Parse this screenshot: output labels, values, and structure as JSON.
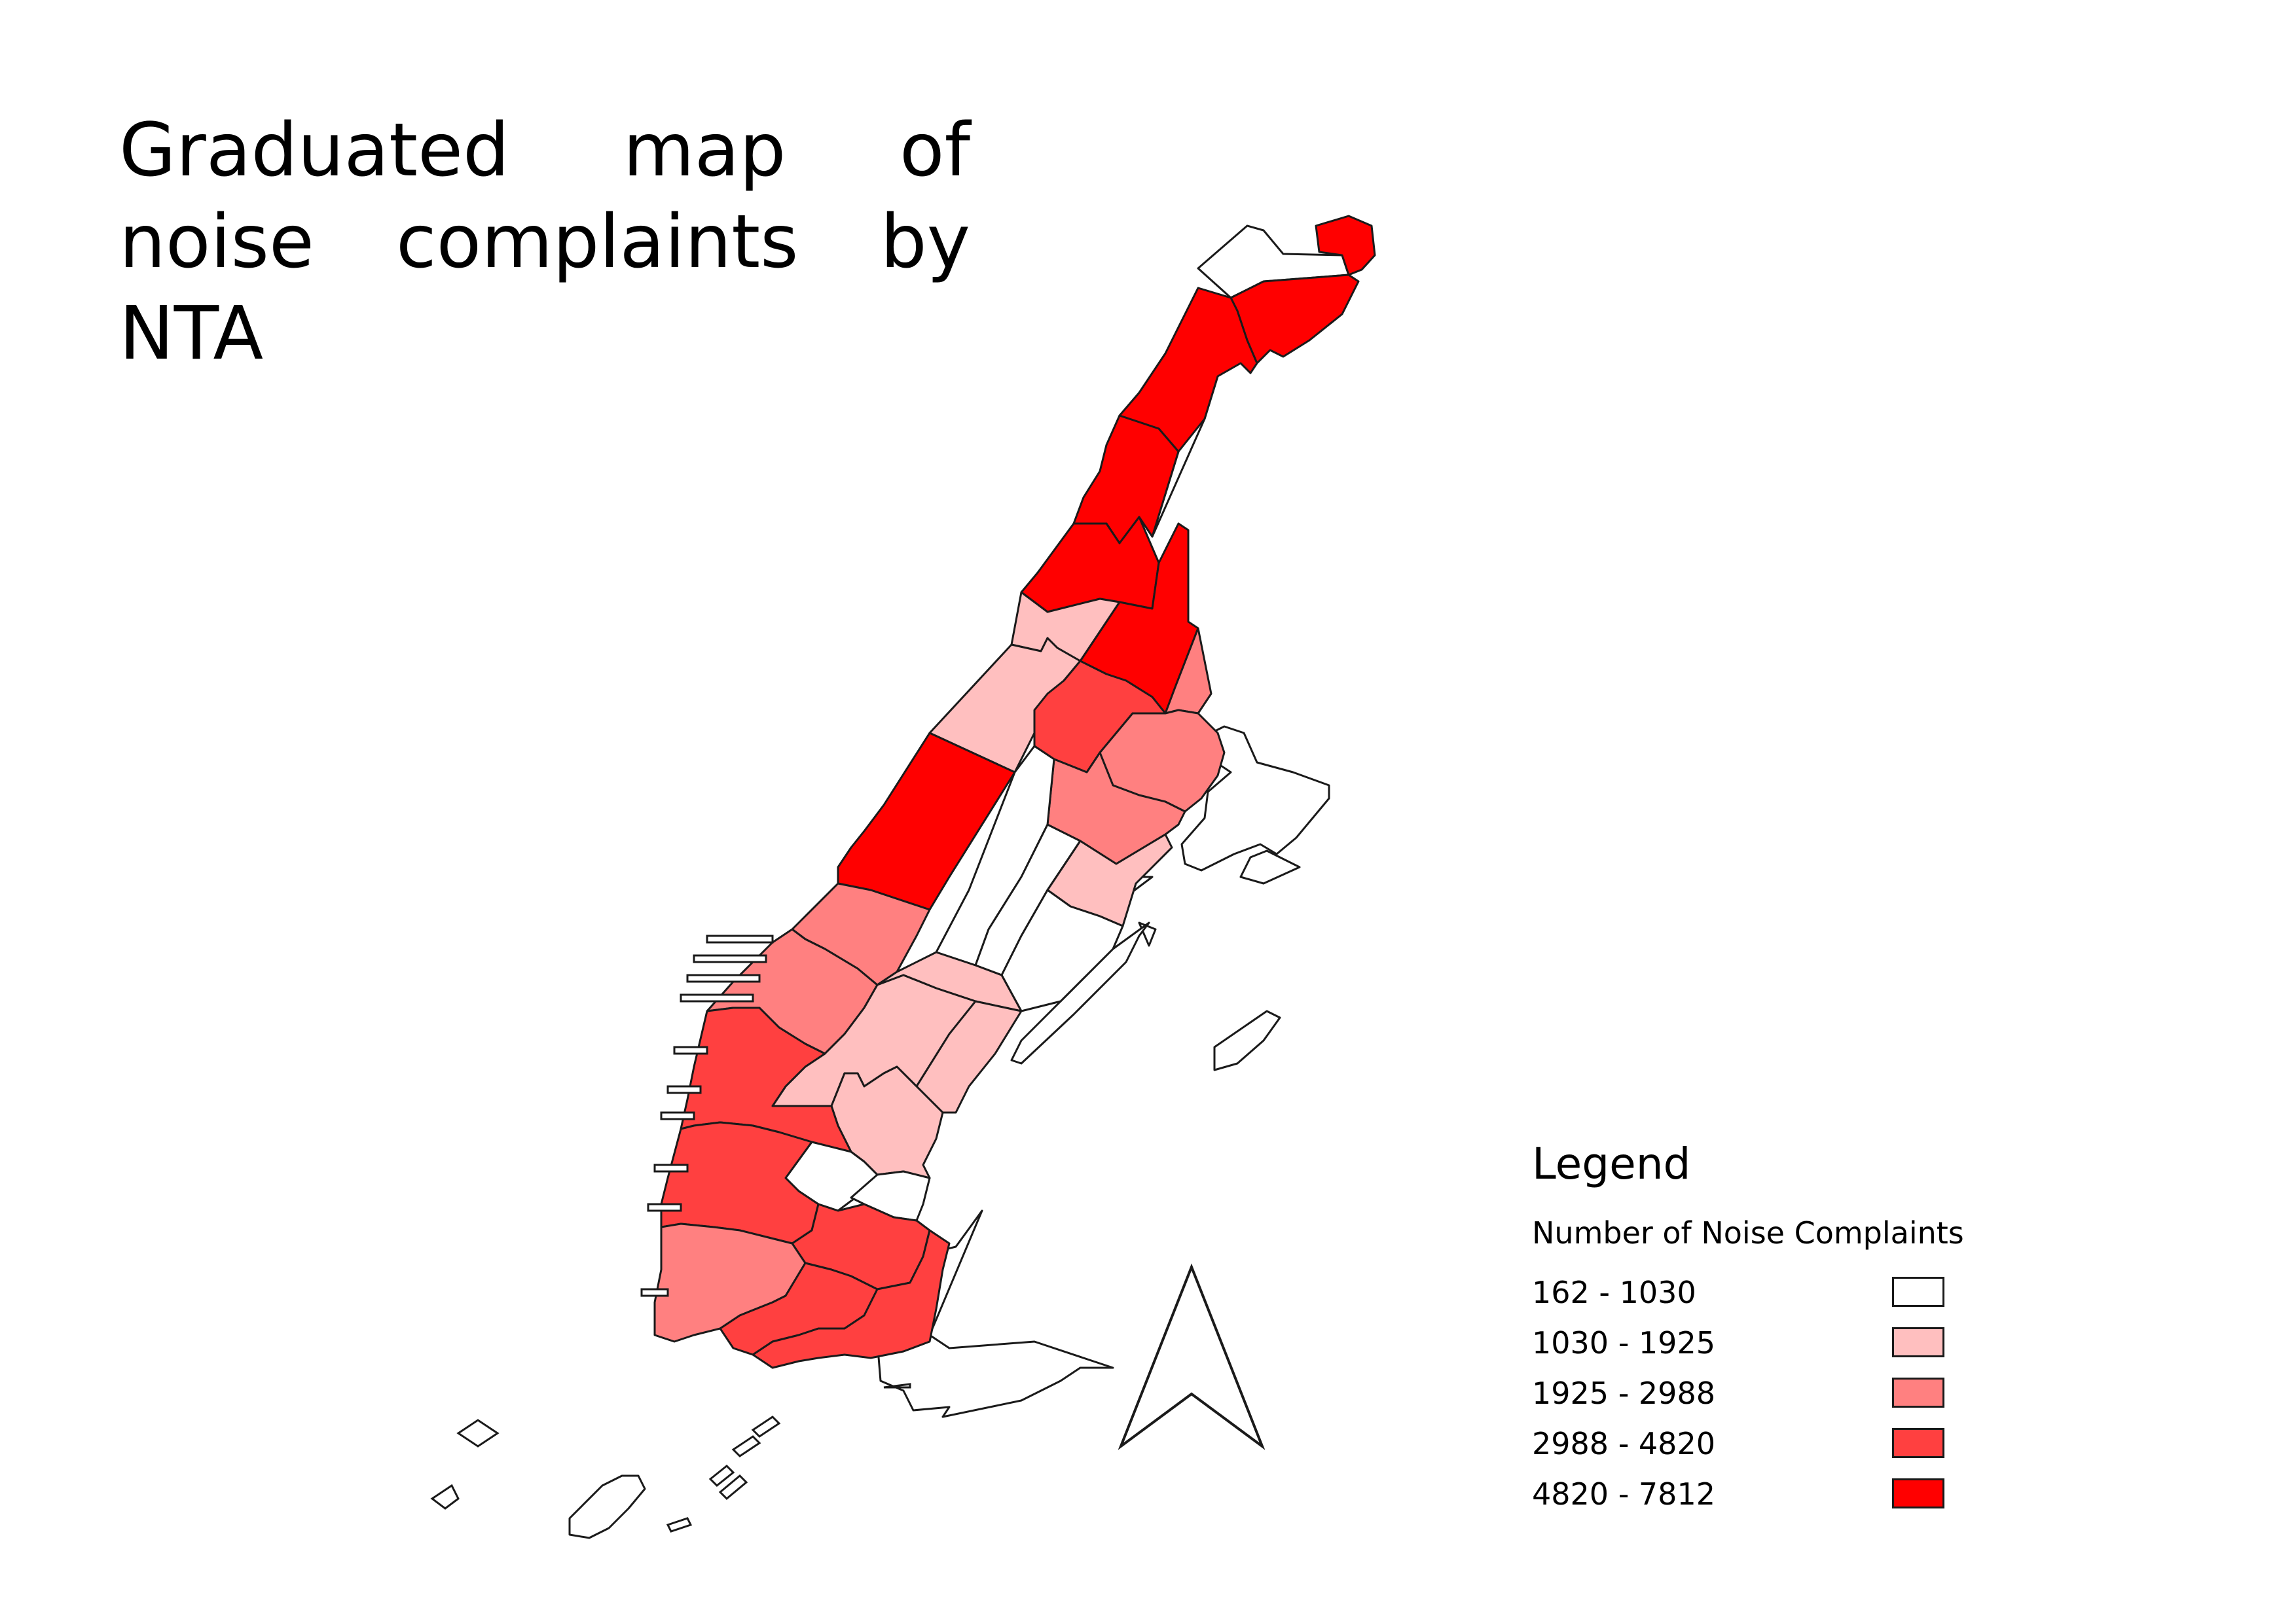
{
  "map": {
    "title": "Graduated map of noise complaints by NTA",
    "legend": {
      "title": "Legend",
      "subtitle": "Number of Noise Complaints",
      "classes": [
        {
          "label": "162 - 1030",
          "color": "#ffffff"
        },
        {
          "label": "1030 - 1925",
          "color": "#ffbfbf"
        },
        {
          "label": "1925 - 2988",
          "color": "#ff8080"
        },
        {
          "label": "2988 - 4820",
          "color": "#ff4040"
        },
        {
          "label": "4820 - 7812",
          "color": "#ff0000"
        }
      ]
    },
    "north_arrow": "north-arrow-icon"
  }
}
